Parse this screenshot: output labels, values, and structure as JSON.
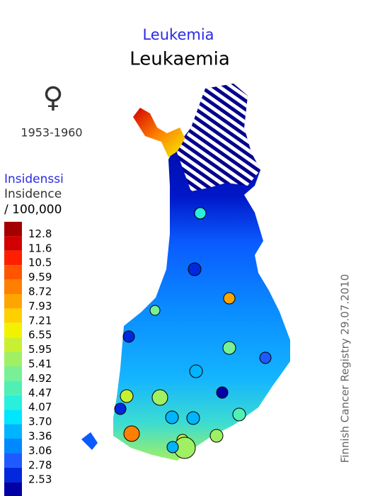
{
  "title_local": "Leukemia",
  "title": "Leukaemia",
  "sex_symbol": "♀",
  "period": "1953-1960",
  "legend": {
    "title_local": "Insidenssi",
    "title": "Insidence",
    "unit": "/ 100,000",
    "colors": [
      "#a50000",
      "#d20000",
      "#ff1e00",
      "#ff5500",
      "#ff8000",
      "#ffa500",
      "#ffd000",
      "#f2f200",
      "#c8f032",
      "#a0f064",
      "#78f096",
      "#50f0b4",
      "#28f0dc",
      "#00e6ff",
      "#00b4ff",
      "#0088ff",
      "#1e5aff",
      "#0028dc",
      "#0000a5"
    ],
    "labels": [
      "12.8",
      "11.6",
      "10.5",
      "9.59",
      "8.72",
      "7.93",
      "7.21",
      "6.55",
      "5.95",
      "5.41",
      "4.92",
      "4.47",
      "4.07",
      "3.70",
      "3.36",
      "3.06",
      "2.78",
      "2.53"
    ]
  },
  "source": "Finnish Cancer Registry 29.07.2010"
}
